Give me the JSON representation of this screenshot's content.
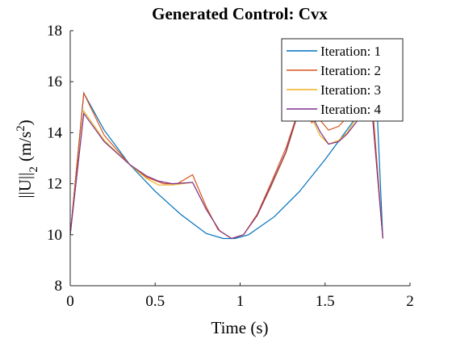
{
  "chart_data": {
    "type": "line",
    "title": "Generated Control: Cvx",
    "xlabel": "Time (s)",
    "ylabel": "||U||",
    "ylabel_sub": "2",
    "ylabel_unit": "(m/s",
    "ylabel_sup": "2",
    "ylabel_close": ")",
    "xlim": [
      0,
      2
    ],
    "ylim": [
      8,
      18
    ],
    "xticks": [
      "0",
      "0.5",
      "1",
      "1.5",
      "2"
    ],
    "yticks": [
      "8",
      "10",
      "12",
      "14",
      "16",
      "18"
    ],
    "grid": false,
    "legend_position": "top-right",
    "series": [
      {
        "name": "Iteration: 1",
        "color": "#0072BD",
        "x": [
          0,
          0.08,
          0.2,
          0.35,
          0.5,
          0.65,
          0.8,
          0.9,
          0.97,
          1.05,
          1.2,
          1.35,
          1.5,
          1.65,
          1.8,
          1.84
        ],
        "y": [
          10.0,
          15.55,
          14.1,
          12.75,
          11.7,
          10.8,
          10.05,
          9.85,
          9.85,
          10.0,
          10.7,
          11.7,
          12.95,
          14.3,
          15.8,
          9.85
        ]
      },
      {
        "name": "Iteration: 2",
        "color": "#D95319",
        "x": [
          0,
          0.08,
          0.2,
          0.35,
          0.45,
          0.55,
          0.63,
          0.72,
          0.8,
          0.87,
          0.95,
          1.02,
          1.1,
          1.18,
          1.27,
          1.33,
          1.38,
          1.42,
          1.47,
          1.52,
          1.58,
          1.63,
          1.68,
          1.73,
          1.78,
          1.84
        ],
        "y": [
          10.0,
          15.55,
          13.9,
          12.75,
          12.25,
          12.0,
          12.0,
          12.35,
          11.1,
          10.2,
          9.85,
          10.0,
          10.8,
          12.0,
          13.4,
          14.6,
          15.6,
          14.4,
          14.5,
          14.1,
          14.25,
          14.6,
          15.2,
          15.6,
          15.0,
          9.85
        ]
      },
      {
        "name": "Iteration: 3",
        "color": "#EDB120",
        "x": [
          0,
          0.08,
          0.2,
          0.35,
          0.45,
          0.52,
          0.6,
          0.72,
          0.8,
          0.88,
          0.95,
          1.02,
          1.1,
          1.18,
          1.27,
          1.33,
          1.38,
          1.42,
          1.47,
          1.52,
          1.58,
          1.63,
          1.7,
          1.78,
          1.84
        ],
        "y": [
          10.0,
          14.85,
          13.7,
          12.75,
          12.2,
          11.95,
          11.95,
          12.05,
          11.0,
          10.15,
          9.85,
          10.0,
          10.75,
          11.85,
          13.2,
          14.5,
          15.4,
          14.6,
          13.9,
          13.55,
          13.7,
          14.0,
          14.7,
          14.6,
          9.85
        ]
      },
      {
        "name": "Iteration: 4",
        "color": "#7E2F8E",
        "x": [
          0,
          0.08,
          0.2,
          0.35,
          0.45,
          0.52,
          0.6,
          0.72,
          0.8,
          0.88,
          0.95,
          1.02,
          1.1,
          1.18,
          1.27,
          1.33,
          1.38,
          1.42,
          1.47,
          1.52,
          1.58,
          1.63,
          1.7,
          1.78,
          1.84
        ],
        "y": [
          10.0,
          14.75,
          13.65,
          12.75,
          12.3,
          12.1,
          12.0,
          12.05,
          11.0,
          10.15,
          9.85,
          10.0,
          10.75,
          11.9,
          13.25,
          14.55,
          15.35,
          14.7,
          14.05,
          13.55,
          13.65,
          13.95,
          14.55,
          14.55,
          9.85
        ]
      }
    ]
  }
}
